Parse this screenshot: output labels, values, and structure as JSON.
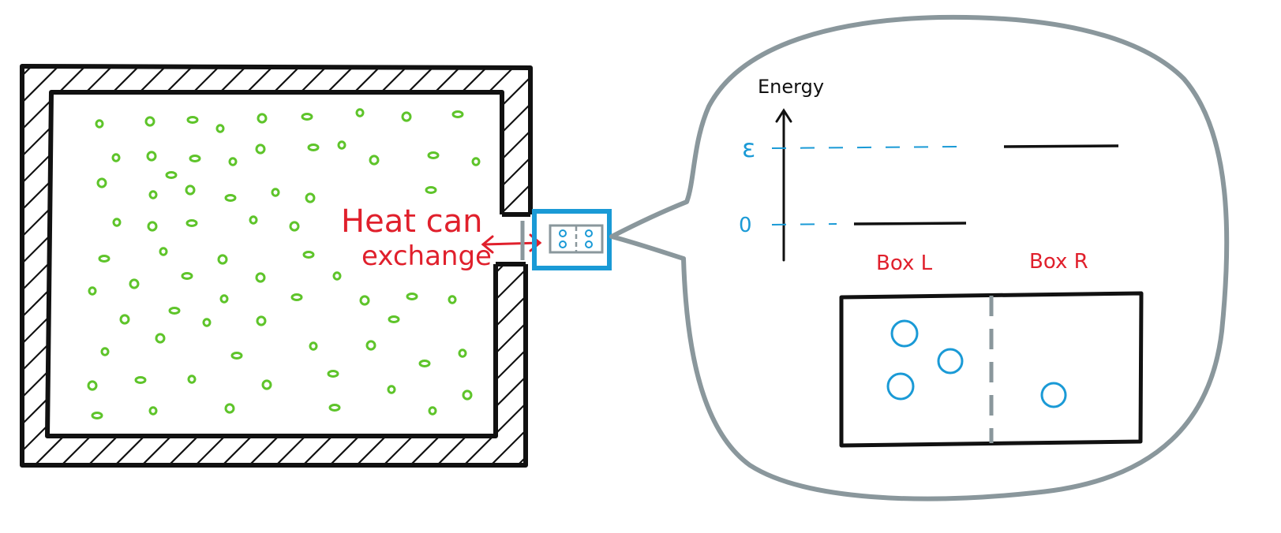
{
  "diagram": {
    "annotation": {
      "line1": "Heat can",
      "line2": "exchange",
      "color": "#e0202c"
    },
    "zoom": {
      "axis_label": "Energy",
      "levels": [
        {
          "label": "ε",
          "meaning": "upper energy level"
        },
        {
          "label": "0",
          "meaning": "ground energy level"
        }
      ],
      "boxes": [
        {
          "label": "Box L",
          "particle_count": 3
        },
        {
          "label": "Box R",
          "particle_count": 1
        }
      ],
      "small_box_particles_left": 2,
      "small_box_particles_right": 2
    },
    "colors": {
      "wall": "#111111",
      "particles": "#5ec42a",
      "system": "#1a9ad6",
      "bubble": "#8a979c",
      "label": "#e0202c"
    }
  }
}
